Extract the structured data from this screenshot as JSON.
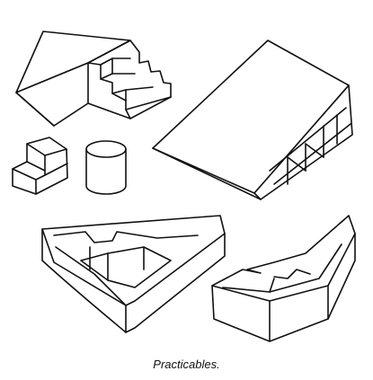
{
  "caption": "Practicables."
}
